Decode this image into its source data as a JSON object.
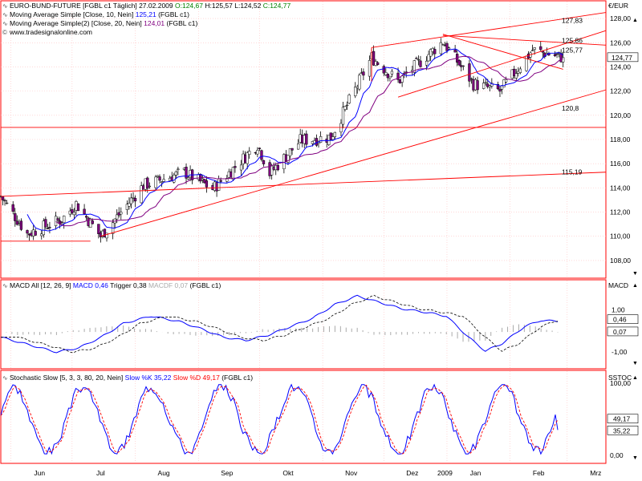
{
  "colors": {
    "frame": "#ff0000",
    "grid": "#ffc0c0",
    "candle_up": "#ffffff",
    "candle_down": "#800080",
    "ma10": "#0000ff",
    "ma20": "#800080",
    "trendline": "#ff0000",
    "macd": "#0000ff",
    "trigger": "#000000",
    "macdf": "#aaaaaa",
    "slow_k": "#0000ff",
    "slow_d": "#ff0000"
  },
  "price_panel": {
    "unit_label": "€/EUR",
    "title_line": {
      "name": "EURO-BUND-FUTURE [FGBL c1 Täglich]",
      "date": "27.02.2009",
      "o": "O:124,67",
      "h": "H:125,57",
      "l": "L:124,52",
      "c": "C:124,77"
    },
    "ma10_line": {
      "label": "Moving Average Simple [Close, 10, Nein]",
      "value": "125,21",
      "suffix": "(FGBL c1)"
    },
    "ma20_line": {
      "label": "Moving Average Simple(2) [Close, 20, Nein]",
      "value": "124,01",
      "suffix": "(FGBL c1)"
    },
    "source": "www.tradesignalonline.com",
    "last_price_badge": "124,77",
    "y_ticks": [
      "128,00",
      "126,00",
      "124,00",
      "122,00",
      "120,00",
      "118,00",
      "116,00",
      "114,00",
      "112,00",
      "110,00",
      "108,00"
    ],
    "annotations": [
      "127,83",
      "125,86",
      "125,77",
      "120,8",
      "115,19"
    ]
  },
  "macd_panel": {
    "title": "MACD All [12, 26, 9]",
    "macd_label": "MACD 0,46",
    "trigger_label": "Trigger 0,38",
    "macdf_label": "MACDF 0,07",
    "suffix": "(FGBL c1)",
    "unit_label": "MACD",
    "y_ticks": [
      "1,00",
      "-1,00"
    ],
    "value_badges": [
      "0,46",
      "0,07"
    ]
  },
  "stoch_panel": {
    "title": "Stochastic Slow [5, 3, 3, 80, 20, Nein]",
    "k_label": "Slow %K 35,22",
    "d_label": "Slow %D 49,17",
    "suffix": "(FGBL c1)",
    "unit_label": "SSTOC",
    "y_ticks": [
      "100,00",
      "0,00"
    ],
    "value_badges": [
      "49,17",
      "35,22"
    ]
  },
  "x_axis": {
    "month_labels": [
      "Jun",
      "Jul",
      "Aug",
      "Sep",
      "Okt",
      "Nov",
      "Dez",
      "2009",
      "Jan",
      "Feb",
      "Mrz"
    ]
  },
  "chart_data": [
    {
      "type": "candlestick",
      "title": "EURO-BUND-FUTURE [FGBL c1 Täglich]",
      "ylabel": "€/EUR",
      "ylim": [
        107,
        129
      ],
      "x_range": [
        "2008-05-27",
        "2009-03-20"
      ],
      "series": [
        {
          "name": "Moving Average Simple [Close, 10, Nein]",
          "last": 125.21
        },
        {
          "name": "Moving Average Simple(2) [Close, 20, Nein]",
          "last": 124.01
        }
      ],
      "key_points": [
        {
          "date": "2008-05-27",
          "close": 113.3
        },
        {
          "date": "2008-06-09",
          "close": 110.2
        },
        {
          "date": "2008-06-26",
          "close": 111.4
        },
        {
          "date": "2008-07-03",
          "close": 112.7
        },
        {
          "date": "2008-07-15",
          "close": 110.0
        },
        {
          "date": "2008-08-05",
          "close": 114.2
        },
        {
          "date": "2008-08-25",
          "close": 115.3
        },
        {
          "date": "2008-09-08",
          "close": 113.9
        },
        {
          "date": "2008-09-30",
          "close": 117.6
        },
        {
          "date": "2008-10-06",
          "close": 115.2
        },
        {
          "date": "2008-10-21",
          "close": 117.9
        },
        {
          "date": "2008-11-05",
          "close": 118.2
        },
        {
          "date": "2008-11-25",
          "close": 124.8
        },
        {
          "date": "2008-12-08",
          "close": 122.8
        },
        {
          "date": "2008-12-30",
          "close": 126.1
        },
        {
          "date": "2009-01-14",
          "close": 122.6
        },
        {
          "date": "2009-01-27",
          "close": 122.0
        },
        {
          "date": "2009-02-12",
          "close": 125.4
        },
        {
          "date": "2009-02-27",
          "close": 124.77
        }
      ],
      "trendlines": [
        {
          "label": "127,83"
        },
        {
          "label": "125,86"
        },
        {
          "label": "120,8"
        },
        {
          "label": "115,19"
        }
      ],
      "horizontal_lines": [
        119.0,
        109.6
      ]
    },
    {
      "type": "line",
      "title": "MACD All [12, 26, 9]",
      "series": [
        {
          "name": "MACD",
          "last": 0.46,
          "points": [
            [
              0,
              -0.3
            ],
            [
              0.05,
              -0.65
            ],
            [
              0.1,
              -1.0
            ],
            [
              0.14,
              -0.8
            ],
            [
              0.18,
              -0.3
            ],
            [
              0.22,
              0.35
            ],
            [
              0.27,
              0.7
            ],
            [
              0.32,
              0.45
            ],
            [
              0.36,
              0.1
            ],
            [
              0.4,
              -0.3
            ],
            [
              0.44,
              -0.45
            ],
            [
              0.48,
              -0.2
            ],
            [
              0.52,
              0.2
            ],
            [
              0.56,
              0.6
            ],
            [
              0.6,
              1.25
            ],
            [
              0.64,
              1.65
            ],
            [
              0.68,
              1.35
            ],
            [
              0.72,
              1.05
            ],
            [
              0.77,
              0.85
            ],
            [
              0.8,
              0.7
            ],
            [
              0.84,
              -0.3
            ],
            [
              0.87,
              -0.95
            ],
            [
              0.9,
              -0.6
            ],
            [
              0.94,
              0.2
            ],
            [
              0.97,
              0.5
            ],
            [
              1.0,
              0.46
            ]
          ]
        },
        {
          "name": "Trigger",
          "last": 0.38
        },
        {
          "name": "MACDF",
          "last": 0.07
        }
      ],
      "yticks": [
        1.0,
        -1.0
      ]
    },
    {
      "type": "line",
      "title": "Stochastic Slow [5, 3, 3, 80, 20, Nein]",
      "ylim": [
        0,
        100
      ],
      "series": [
        {
          "name": "Slow %K",
          "last": 35.22
        },
        {
          "name": "Slow %D",
          "last": 49.17
        }
      ],
      "yticks": [
        100,
        0
      ]
    }
  ]
}
